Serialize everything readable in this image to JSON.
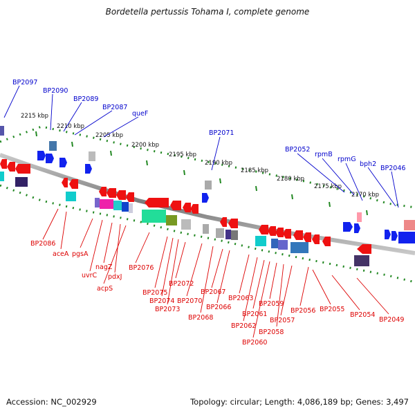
{
  "title": "Bordetella pertussis Tohama I, complete genome",
  "footer": {
    "accession": "Accession: NC_002929",
    "stats": "Topology: circular; Length: 4,086,189 bp; Genes: 3,497"
  },
  "colors": {
    "forward_label": "#0000cc",
    "reverse_label": "#dd0000",
    "backbone": "#8a8a8a",
    "tick": "#228822"
  },
  "scale_ticks": [
    "2215 kbp",
    "2210 kbp",
    "2205 kbp",
    "2200 kbp",
    "2195 kbp",
    "2190 kbp",
    "2185 kbp",
    "2180 kbp",
    "2175 kbp",
    "2170 kbp"
  ],
  "top_labels": [
    "BP2097",
    "BP2090",
    "BP2089",
    "BP2087",
    "queF",
    "BP2071",
    "BP2052",
    "rpmB",
    "rpmG",
    "bph2",
    "BP2046"
  ],
  "bottom_labels": [
    "BP2086",
    "aceA",
    "pgsA",
    "uvrC",
    "nagZ",
    "pdxJ",
    "acpS",
    "BP2076",
    "BP2075",
    "BP2074",
    "BP2073",
    "BP2072",
    "BP2070",
    "BP2068",
    "BP2067",
    "BP2066",
    "BP2063",
    "BP2062",
    "BP2061",
    "BP2060",
    "BP2059",
    "BP2058",
    "BP2057",
    "BP2056",
    "BP2055",
    "BP2054",
    "BP2049"
  ]
}
